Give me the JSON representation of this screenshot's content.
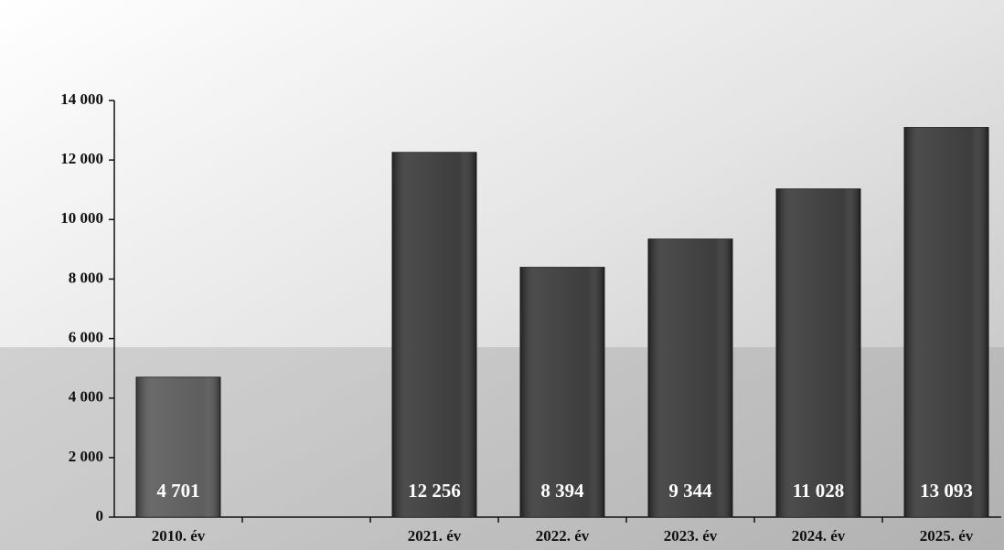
{
  "chart_data": {
    "type": "bar",
    "categories": [
      "2010. év",
      null,
      "2021. év",
      "2022. év",
      "2023. év",
      "2024. év",
      "2025. év"
    ],
    "values": [
      4701,
      null,
      12256,
      8394,
      9344,
      11028,
      13093
    ],
    "value_labels": [
      "4 701",
      null,
      "12 256",
      "8 394",
      "9 344",
      "11 028",
      "13 093"
    ],
    "colors": [
      "#555555",
      null,
      "#333333",
      "#333333",
      "#333333",
      "#333333",
      "#333333"
    ],
    "ylim": [
      0,
      14000
    ],
    "yticks": [
      0,
      {
        "value": 2000,
        "label": "2 000"
      },
      {
        "value": 4000,
        "label": "4 000"
      },
      {
        "value": 6000,
        "label": "6 000"
      },
      {
        "value": 8000,
        "label": "8 000"
      },
      {
        "value": 10000,
        "label": "10 000"
      },
      {
        "value": 12000,
        "label": "12 000"
      },
      {
        "value": 14000,
        "label": "14 000"
      }
    ]
  }
}
